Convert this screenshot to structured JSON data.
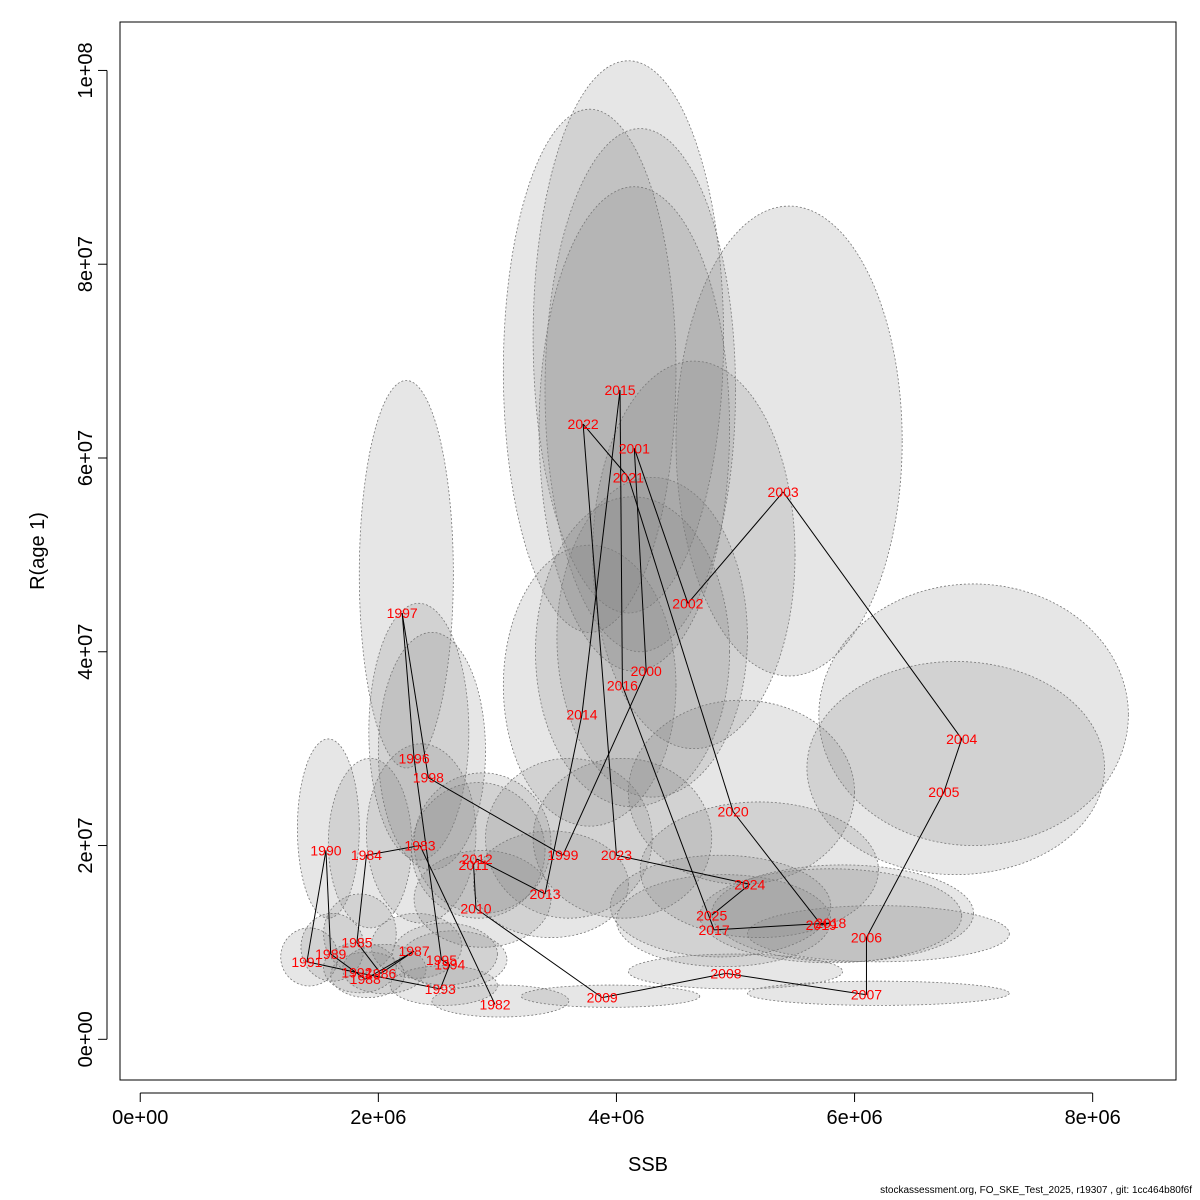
{
  "footer": "stockassessment.org, FO_SKE_Test_2025, r19307 , git: 1cc464b80f6f",
  "chart_data": {
    "type": "scatter",
    "xlabel": "SSB",
    "ylabel": "R(age 1)",
    "xlim": [
      -170000.0,
      8700000.0
    ],
    "ylim": [
      -4200000.0,
      105000000.0
    ],
    "xticks": [
      0,
      2000000,
      4000000,
      6000000,
      8000000
    ],
    "xtick_labels": [
      "0e+00",
      "2e+06",
      "4e+06",
      "6e+06",
      "8e+06"
    ],
    "yticks": [
      0,
      20000000,
      40000000,
      60000000,
      80000000,
      100000000
    ],
    "ytick_labels": [
      "0e+00",
      "2e+07",
      "4e+07",
      "6e+07",
      "8e+07",
      "1e+08"
    ],
    "grid": false,
    "line_color": "#000000",
    "label_color": "#ff0000",
    "ellipse_fill": "rgba(128,128,128,0.2)",
    "ellipse_stroke": "#777777",
    "points": [
      {
        "year": "1982",
        "ssb": 2980000,
        "rec": 3600000,
        "ssb_lo": 2450000,
        "ssb_hi": 3600000,
        "rec_lo": 2300000,
        "rec_hi": 5600000
      },
      {
        "year": "1983",
        "ssb": 2350000,
        "rec": 20000000,
        "ssb_lo": 1900000,
        "ssb_hi": 2820000,
        "rec_lo": 12000000,
        "rec_hi": 30500000
      },
      {
        "year": "1984",
        "ssb": 1900000,
        "rec": 19000000,
        "ssb_lo": 1580000,
        "ssb_hi": 2280000,
        "rec_lo": 11500000,
        "rec_hi": 29000000
      },
      {
        "year": "1985",
        "ssb": 1820000,
        "rec": 10000000,
        "ssb_lo": 1540000,
        "ssb_hi": 2150000,
        "rec_lo": 6800000,
        "rec_hi": 15000000
      },
      {
        "year": "1986",
        "ssb": 2020000,
        "rec": 6800000,
        "ssb_lo": 1700000,
        "ssb_hi": 2400000,
        "rec_lo": 4700000,
        "rec_hi": 9800000
      },
      {
        "year": "1987",
        "ssb": 2300000,
        "rec": 9100000,
        "ssb_lo": 1940000,
        "ssb_hi": 2700000,
        "rec_lo": 6300000,
        "rec_hi": 13000000
      },
      {
        "year": "1988",
        "ssb": 1890000,
        "rec": 6200000,
        "ssb_lo": 1600000,
        "ssb_hi": 2220000,
        "rec_lo": 4300000,
        "rec_hi": 9000000
      },
      {
        "year": "1989",
        "ssb": 1600000,
        "rec": 8800000,
        "ssb_lo": 1350000,
        "ssb_hi": 1880000,
        "rec_lo": 6000000,
        "rec_hi": 13000000
      },
      {
        "year": "1990",
        "ssb": 1560000,
        "rec": 19500000,
        "ssb_lo": 1320000,
        "ssb_hi": 1840000,
        "rec_lo": 12500000,
        "rec_hi": 31000000
      },
      {
        "year": "1991",
        "ssb": 1400000,
        "rec": 8000000,
        "ssb_lo": 1180000,
        "ssb_hi": 1660000,
        "rec_lo": 5500000,
        "rec_hi": 11500000
      },
      {
        "year": "1992",
        "ssb": 1820000,
        "rec": 6900000,
        "ssb_lo": 1540000,
        "ssb_hi": 2150000,
        "rec_lo": 4800000,
        "rec_hi": 10000000
      },
      {
        "year": "1993",
        "ssb": 2520000,
        "rec": 5200000,
        "ssb_lo": 2100000,
        "ssb_hi": 3000000,
        "rec_lo": 3500000,
        "rec_hi": 7600000
      },
      {
        "year": "1994",
        "ssb": 2600000,
        "rec": 7700000,
        "ssb_lo": 2180000,
        "ssb_hi": 3080000,
        "rec_lo": 5300000,
        "rec_hi": 11200000
      },
      {
        "year": "1995",
        "ssb": 2530000,
        "rec": 8200000,
        "ssb_lo": 2120000,
        "ssb_hi": 3000000,
        "rec_lo": 5600000,
        "rec_hi": 12000000
      },
      {
        "year": "1996",
        "ssb": 2300000,
        "rec": 29000000,
        "ssb_lo": 1920000,
        "ssb_hi": 2760000,
        "rec_lo": 18500000,
        "rec_hi": 45000000
      },
      {
        "year": "1997",
        "ssb": 2200000,
        "rec": 44000000,
        "ssb_lo": 1840000,
        "ssb_hi": 2630000,
        "rec_lo": 28000000,
        "rec_hi": 68000000
      },
      {
        "year": "1998",
        "ssb": 2420000,
        "rec": 27000000,
        "ssb_lo": 2000000,
        "ssb_hi": 2900000,
        "rec_lo": 17500000,
        "rec_hi": 42000000
      },
      {
        "year": "1999",
        "ssb": 3550000,
        "rec": 19000000,
        "ssb_lo": 2900000,
        "ssb_hi": 4300000,
        "rec_lo": 12500000,
        "rec_hi": 29000000
      },
      {
        "year": "2000",
        "ssb": 4250000,
        "rec": 38000000,
        "ssb_lo": 3500000,
        "ssb_hi": 5100000,
        "rec_lo": 25000000,
        "rec_hi": 58000000
      },
      {
        "year": "2001",
        "ssb": 4150000,
        "rec": 61000000,
        "ssb_lo": 3400000,
        "ssb_hi": 5000000,
        "rec_lo": 40000000,
        "rec_hi": 94000000
      },
      {
        "year": "2002",
        "ssb": 4600000,
        "rec": 45000000,
        "ssb_lo": 3800000,
        "ssb_hi": 5500000,
        "rec_lo": 30000000,
        "rec_hi": 70000000
      },
      {
        "year": "2003",
        "ssb": 5400000,
        "rec": 56500000,
        "ssb_lo": 4500000,
        "ssb_hi": 6400000,
        "rec_lo": 37500000,
        "rec_hi": 86000000
      },
      {
        "year": "2004",
        "ssb": 6900000,
        "rec": 31000000,
        "ssb_lo": 5700000,
        "ssb_hi": 8300000,
        "rec_lo": 20000000,
        "rec_hi": 47000000
      },
      {
        "year": "2005",
        "ssb": 6750000,
        "rec": 25500000,
        "ssb_lo": 5600000,
        "ssb_hi": 8100000,
        "rec_lo": 17000000,
        "rec_hi": 39000000
      },
      {
        "year": "2006",
        "ssb": 6100000,
        "rec": 10500000,
        "ssb_lo": 5100000,
        "ssb_hi": 7300000,
        "rec_lo": 8000000,
        "rec_hi": 13800000
      },
      {
        "year": "2007",
        "ssb": 6100000,
        "rec": 4600000,
        "ssb_lo": 5100000,
        "ssb_hi": 7300000,
        "rec_lo": 3500000,
        "rec_hi": 6000000
      },
      {
        "year": "2008",
        "ssb": 4920000,
        "rec": 6800000,
        "ssb_lo": 4100000,
        "ssb_hi": 5900000,
        "rec_lo": 5200000,
        "rec_hi": 8800000
      },
      {
        "year": "2009",
        "ssb": 3880000,
        "rec": 4300000,
        "ssb_lo": 3200000,
        "ssb_hi": 4700000,
        "rec_lo": 3300000,
        "rec_hi": 5600000
      },
      {
        "year": "2010",
        "ssb": 2820000,
        "rec": 13500000,
        "ssb_lo": 2300000,
        "ssb_hi": 3450000,
        "rec_lo": 9500000,
        "rec_hi": 19500000
      },
      {
        "year": "2011",
        "ssb": 2800000,
        "rec": 18000000,
        "ssb_lo": 2280000,
        "ssb_hi": 3400000,
        "rec_lo": 12500000,
        "rec_hi": 26500000
      },
      {
        "year": "2012",
        "ssb": 2830000,
        "rec": 18600000,
        "ssb_lo": 2300000,
        "ssb_hi": 3450000,
        "rec_lo": 13000000,
        "rec_hi": 27500000
      },
      {
        "year": "2013",
        "ssb": 3400000,
        "rec": 15000000,
        "ssb_lo": 2800000,
        "ssb_hi": 4100000,
        "rec_lo": 10500000,
        "rec_hi": 21500000
      },
      {
        "year": "2014",
        "ssb": 3710000,
        "rec": 33500000,
        "ssb_lo": 3050000,
        "ssb_hi": 4500000,
        "rec_lo": 22000000,
        "rec_hi": 51000000
      },
      {
        "year": "2015",
        "ssb": 4030000,
        "rec": 67000000,
        "ssb_lo": 3300000,
        "ssb_hi": 4900000,
        "rec_lo": 44000000,
        "rec_hi": 101000000
      },
      {
        "year": "2016",
        "ssb": 4050000,
        "rec": 36500000,
        "ssb_lo": 3320000,
        "ssb_hi": 4950000,
        "rec_lo": 24000000,
        "rec_hi": 56000000
      },
      {
        "year": "2017",
        "ssb": 4820000,
        "rec": 11300000,
        "ssb_lo": 4000000,
        "ssb_hi": 5800000,
        "rec_lo": 7500000,
        "rec_hi": 17000000
      },
      {
        "year": "2018",
        "ssb": 5800000,
        "rec": 12000000,
        "ssb_lo": 4800000,
        "ssb_hi": 7000000,
        "rec_lo": 8000000,
        "rec_hi": 18000000
      },
      {
        "year": "2019",
        "ssb": 5720000,
        "rec": 11800000,
        "ssb_lo": 4700000,
        "ssb_hi": 6900000,
        "rec_lo": 7900000,
        "rec_hi": 17600000
      },
      {
        "year": "2020",
        "ssb": 4980000,
        "rec": 23500000,
        "ssb_lo": 4100000,
        "ssb_hi": 6000000,
        "rec_lo": 16000000,
        "rec_hi": 35000000
      },
      {
        "year": "2021",
        "ssb": 4100000,
        "rec": 58000000,
        "ssb_lo": 3350000,
        "ssb_hi": 4950000,
        "rec_lo": 38000000,
        "rec_hi": 88000000
      },
      {
        "year": "2022",
        "ssb": 3720000,
        "rec": 63500000,
        "ssb_lo": 3050000,
        "ssb_hi": 4500000,
        "rec_lo": 42000000,
        "rec_hi": 96000000
      },
      {
        "year": "2023",
        "ssb": 4000000,
        "rec": 19000000,
        "ssb_lo": 3300000,
        "ssb_hi": 4800000,
        "rec_lo": 12500000,
        "rec_hi": 29000000
      },
      {
        "year": "2024",
        "ssb": 5120000,
        "rec": 16000000,
        "ssb_lo": 4200000,
        "ssb_hi": 6200000,
        "rec_lo": 10500000,
        "rec_hi": 24500000
      },
      {
        "year": "2025",
        "ssb": 4800000,
        "rec": 12800000,
        "ssb_lo": 3950000,
        "ssb_hi": 5800000,
        "rec_lo": 8500000,
        "rec_hi": 19000000
      }
    ]
  }
}
